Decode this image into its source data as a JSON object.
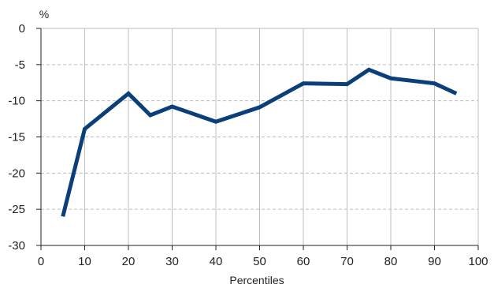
{
  "chart_data": {
    "type": "line",
    "title": "",
    "xlabel": "Percentiles",
    "ylabel": "%",
    "xlim": [
      0,
      100
    ],
    "ylim": [
      -30,
      0
    ],
    "x_ticks": [
      0,
      10,
      20,
      30,
      40,
      50,
      60,
      70,
      80,
      90,
      100
    ],
    "y_ticks": [
      0,
      -5,
      -10,
      -15,
      -20,
      -25,
      -30
    ],
    "x_tick_labels": [
      "0",
      "10",
      "20",
      "30",
      "40",
      "50",
      "60",
      "70",
      "80",
      "90",
      "100"
    ],
    "y_tick_labels": [
      "0",
      "-5",
      "-10",
      "-15",
      "-20",
      "-25",
      "-30"
    ],
    "grid": {
      "vertical": "solid",
      "horizontal": "dashed"
    },
    "legend": "none",
    "series": [
      {
        "color": "#0b3f7a",
        "x": [
          5,
          10,
          20,
          25,
          30,
          40,
          50,
          60,
          70,
          75,
          80,
          90,
          95
        ],
        "y": [
          -26,
          -13.9,
          -9.0,
          -12.0,
          -10.8,
          -12.9,
          -10.9,
          -7.6,
          -7.7,
          -5.7,
          -6.9,
          -7.6,
          -9.0
        ]
      }
    ],
    "colors": {
      "line": "#0b3f7a",
      "axis": "#222222",
      "grid": "#bdbdbd"
    }
  }
}
